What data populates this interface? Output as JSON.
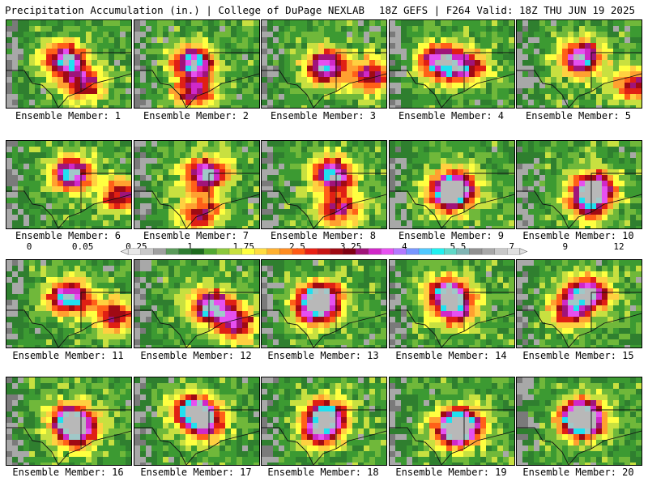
{
  "header": {
    "left_title": "Precipitation Accumulation (in.) | College of DuPage NEXLAB",
    "right_title": "18Z GEFS | F264 Valid: 18Z THU JUN 19 2025"
  },
  "colorbar": {
    "labels": [
      "0",
      "0.05",
      "0.25",
      "1",
      "1.75",
      "2.5",
      "3.25",
      "4",
      "5.5",
      "7",
      "9",
      "12"
    ],
    "colors": [
      "#e8e8e8",
      "#c8c8c8",
      "#a0a0a0",
      "#5a9a5a",
      "#2e7d32",
      "#1e6b1e",
      "#52a832",
      "#8cc83c",
      "#c8e040",
      "#ffff40",
      "#ffdc40",
      "#ffb030",
      "#ff8c20",
      "#ff5a14",
      "#e82014",
      "#c81414",
      "#a00a14",
      "#800014",
      "#a0147a",
      "#d028c8",
      "#e650f0",
      "#b478ff",
      "#7896ff",
      "#50c8ff",
      "#20f0f0",
      "#60d8c8",
      "#80b4b4",
      "#909090",
      "#a8a8a8",
      "#c8c8c8",
      "#e0e0e0"
    ]
  },
  "members": [
    {
      "label": "Ensemble Member: 1"
    },
    {
      "label": "Ensemble Member: 2"
    },
    {
      "label": "Ensemble Member: 3"
    },
    {
      "label": "Ensemble Member: 4"
    },
    {
      "label": "Ensemble Member: 5"
    },
    {
      "label": "Ensemble Member: 6"
    },
    {
      "label": "Ensemble Member: 7"
    },
    {
      "label": "Ensemble Member: 8"
    },
    {
      "label": "Ensemble Member: 9"
    },
    {
      "label": "Ensemble Member: 10"
    },
    {
      "label": "Ensemble Member: 11"
    },
    {
      "label": "Ensemble Member: 12"
    },
    {
      "label": "Ensemble Member: 13"
    },
    {
      "label": "Ensemble Member: 14"
    },
    {
      "label": "Ensemble Member: 15"
    },
    {
      "label": "Ensemble Member: 16"
    },
    {
      "label": "Ensemble Member: 17"
    },
    {
      "label": "Ensemble Member: 18"
    },
    {
      "label": "Ensemble Member: 19"
    },
    {
      "label": "Ensemble Member: 20"
    }
  ]
}
